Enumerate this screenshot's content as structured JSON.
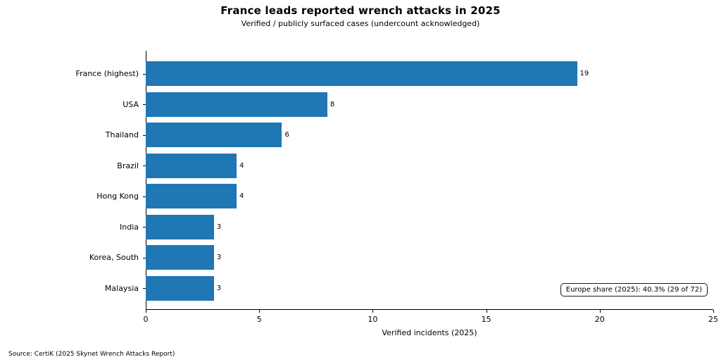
{
  "chart_data": {
    "type": "bar",
    "orientation": "horizontal",
    "title": "France leads reported wrench attacks in 2025",
    "subtitle": "Verified / publicly surfaced cases (undercount acknowledged)",
    "categories": [
      "France (highest)",
      "USA",
      "Thailand",
      "Brazil",
      "Hong Kong",
      "India",
      "Korea, South",
      "Malaysia"
    ],
    "values": [
      19,
      8,
      6,
      4,
      4,
      3,
      3,
      3
    ],
    "xlabel": "Verified incidents (2025)",
    "xlim": [
      0,
      25
    ],
    "xticks": [
      0,
      5,
      10,
      15,
      20,
      25
    ],
    "bar_color": "#1f77b4",
    "grid": false,
    "annotation": "Europe share (2025): 40.3% (29 of 72)",
    "source": "Source: CertiK (2025 Skynet Wrench Attacks Report)"
  }
}
